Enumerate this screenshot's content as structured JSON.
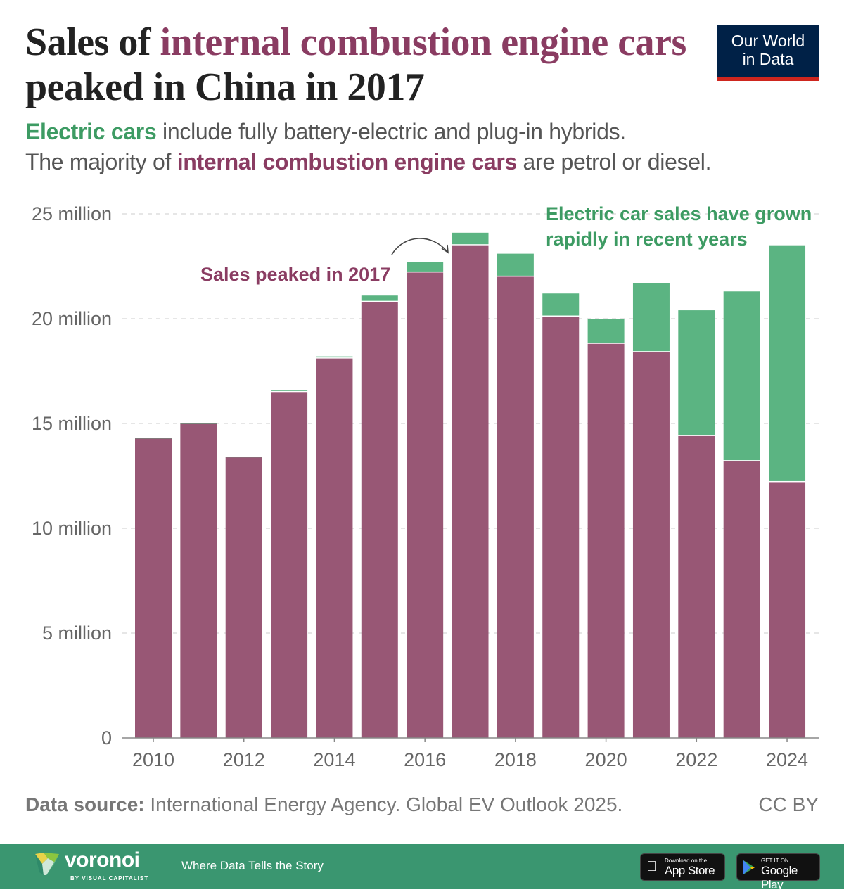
{
  "title": {
    "part1": "Sales of ",
    "highlight1": "internal combustion engine cars",
    "part2": " peaked in China in 2017"
  },
  "subtitle": {
    "line1_highlight": "Electric cars",
    "line1_rest": " include fully battery-electric and plug-in hybrids.",
    "line2_start": "The majority of ",
    "line2_highlight": "internal combustion engine cars",
    "line2_rest": " are petrol or diesel."
  },
  "logo": {
    "line1": "Our World",
    "line2": "in Data"
  },
  "colors": {
    "ice": "#985775",
    "ev": "#5bb482",
    "ice_text": "#8a3c62",
    "ev_text": "#3d9b63",
    "logo_bg": "#002147",
    "logo_accent": "#ce261e",
    "footer_bg": "#3a9670"
  },
  "chart_data": {
    "type": "bar",
    "stacked": true,
    "categories": [
      2010,
      2011,
      2012,
      2013,
      2014,
      2015,
      2016,
      2017,
      2018,
      2019,
      2020,
      2021,
      2022,
      2023,
      2024
    ],
    "x_tick_labels": [
      "2010",
      "2012",
      "2014",
      "2016",
      "2018",
      "2020",
      "2022",
      "2024"
    ],
    "series": [
      {
        "key": "ice",
        "values": [
          14.3,
          15.0,
          13.4,
          16.5,
          18.1,
          20.8,
          22.2,
          23.5,
          22.0,
          20.1,
          18.8,
          18.4,
          14.4,
          13.2,
          12.2
        ]
      },
      {
        "key": "ev",
        "values": [
          0.01,
          0.01,
          0.01,
          0.1,
          0.1,
          0.3,
          0.5,
          0.6,
          1.1,
          1.1,
          1.2,
          3.3,
          6.0,
          8.1,
          11.3
        ]
      }
    ],
    "y_ticks": [
      {
        "value": 0,
        "label": "0"
      },
      {
        "value": 5,
        "label": "5 million"
      },
      {
        "value": 10,
        "label": "10 million"
      },
      {
        "value": 15,
        "label": "15 million"
      },
      {
        "value": 20,
        "label": "20 million"
      },
      {
        "value": 25,
        "label": "25 million"
      }
    ],
    "ylim": [
      0,
      25
    ],
    "grid": "horizontal dashed",
    "annotations": {
      "peak": "Sales peaked in 2017",
      "ev_line1": "Electric car sales have grown",
      "ev_line2": "rapidly in recent years"
    }
  },
  "source": {
    "label": "Data source:",
    "text": " International Energy Agency. Global EV Outlook 2025.",
    "license": "CC BY"
  },
  "footer": {
    "brand": "voronoi",
    "by": "BY VISUAL CAPITALIST",
    "tagline": "Where Data Tells the Story",
    "appstore_small": "Download on the",
    "appstore_big": "App Store",
    "play_small": "GET IT ON",
    "play_big": "Google Play"
  }
}
